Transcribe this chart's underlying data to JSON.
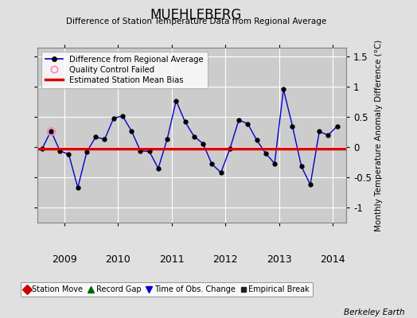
{
  "title": "MUEHLEBERG",
  "subtitle": "Difference of Station Temperature Data from Regional Average",
  "ylabel_right": "Monthly Temperature Anomaly Difference (°C)",
  "footer": "Berkeley Earth",
  "xlim": [
    2008.5,
    2014.25
  ],
  "ylim": [
    -1.25,
    1.65
  ],
  "yticks": [
    -1,
    -0.5,
    0,
    0.5,
    1,
    1.5
  ],
  "xticks": [
    2009,
    2010,
    2011,
    2012,
    2013,
    2014
  ],
  "bias_value": -0.02,
  "background_color": "#e0e0e0",
  "plot_bg_color": "#cccccc",
  "grid_color": "#ffffff",
  "line_color": "#0000cc",
  "bias_color": "#dd0000",
  "qc_failed": [
    [
      2008.75,
      0.27
    ]
  ],
  "time_series": [
    [
      2008.583,
      -0.03
    ],
    [
      2008.75,
      0.27
    ],
    [
      2008.917,
      -0.06
    ],
    [
      2009.083,
      -0.12
    ],
    [
      2009.25,
      -0.67
    ],
    [
      2009.417,
      -0.08
    ],
    [
      2009.583,
      0.17
    ],
    [
      2009.75,
      0.13
    ],
    [
      2009.917,
      0.48
    ],
    [
      2010.083,
      0.52
    ],
    [
      2010.25,
      0.27
    ],
    [
      2010.417,
      -0.06
    ],
    [
      2010.583,
      -0.07
    ],
    [
      2010.75,
      -0.35
    ],
    [
      2010.917,
      0.14
    ],
    [
      2011.083,
      0.77
    ],
    [
      2011.25,
      0.42
    ],
    [
      2011.417,
      0.18
    ],
    [
      2011.583,
      0.06
    ],
    [
      2011.75,
      -0.28
    ],
    [
      2011.917,
      -0.42
    ],
    [
      2012.083,
      -0.03
    ],
    [
      2012.25,
      0.45
    ],
    [
      2012.417,
      0.39
    ],
    [
      2012.583,
      0.12
    ],
    [
      2012.75,
      -0.1
    ],
    [
      2012.917,
      -0.27
    ],
    [
      2013.083,
      0.96
    ],
    [
      2013.25,
      0.35
    ],
    [
      2013.417,
      -0.32
    ],
    [
      2013.583,
      -0.62
    ],
    [
      2013.75,
      0.26
    ],
    [
      2013.917,
      0.2
    ],
    [
      2014.083,
      0.35
    ]
  ]
}
